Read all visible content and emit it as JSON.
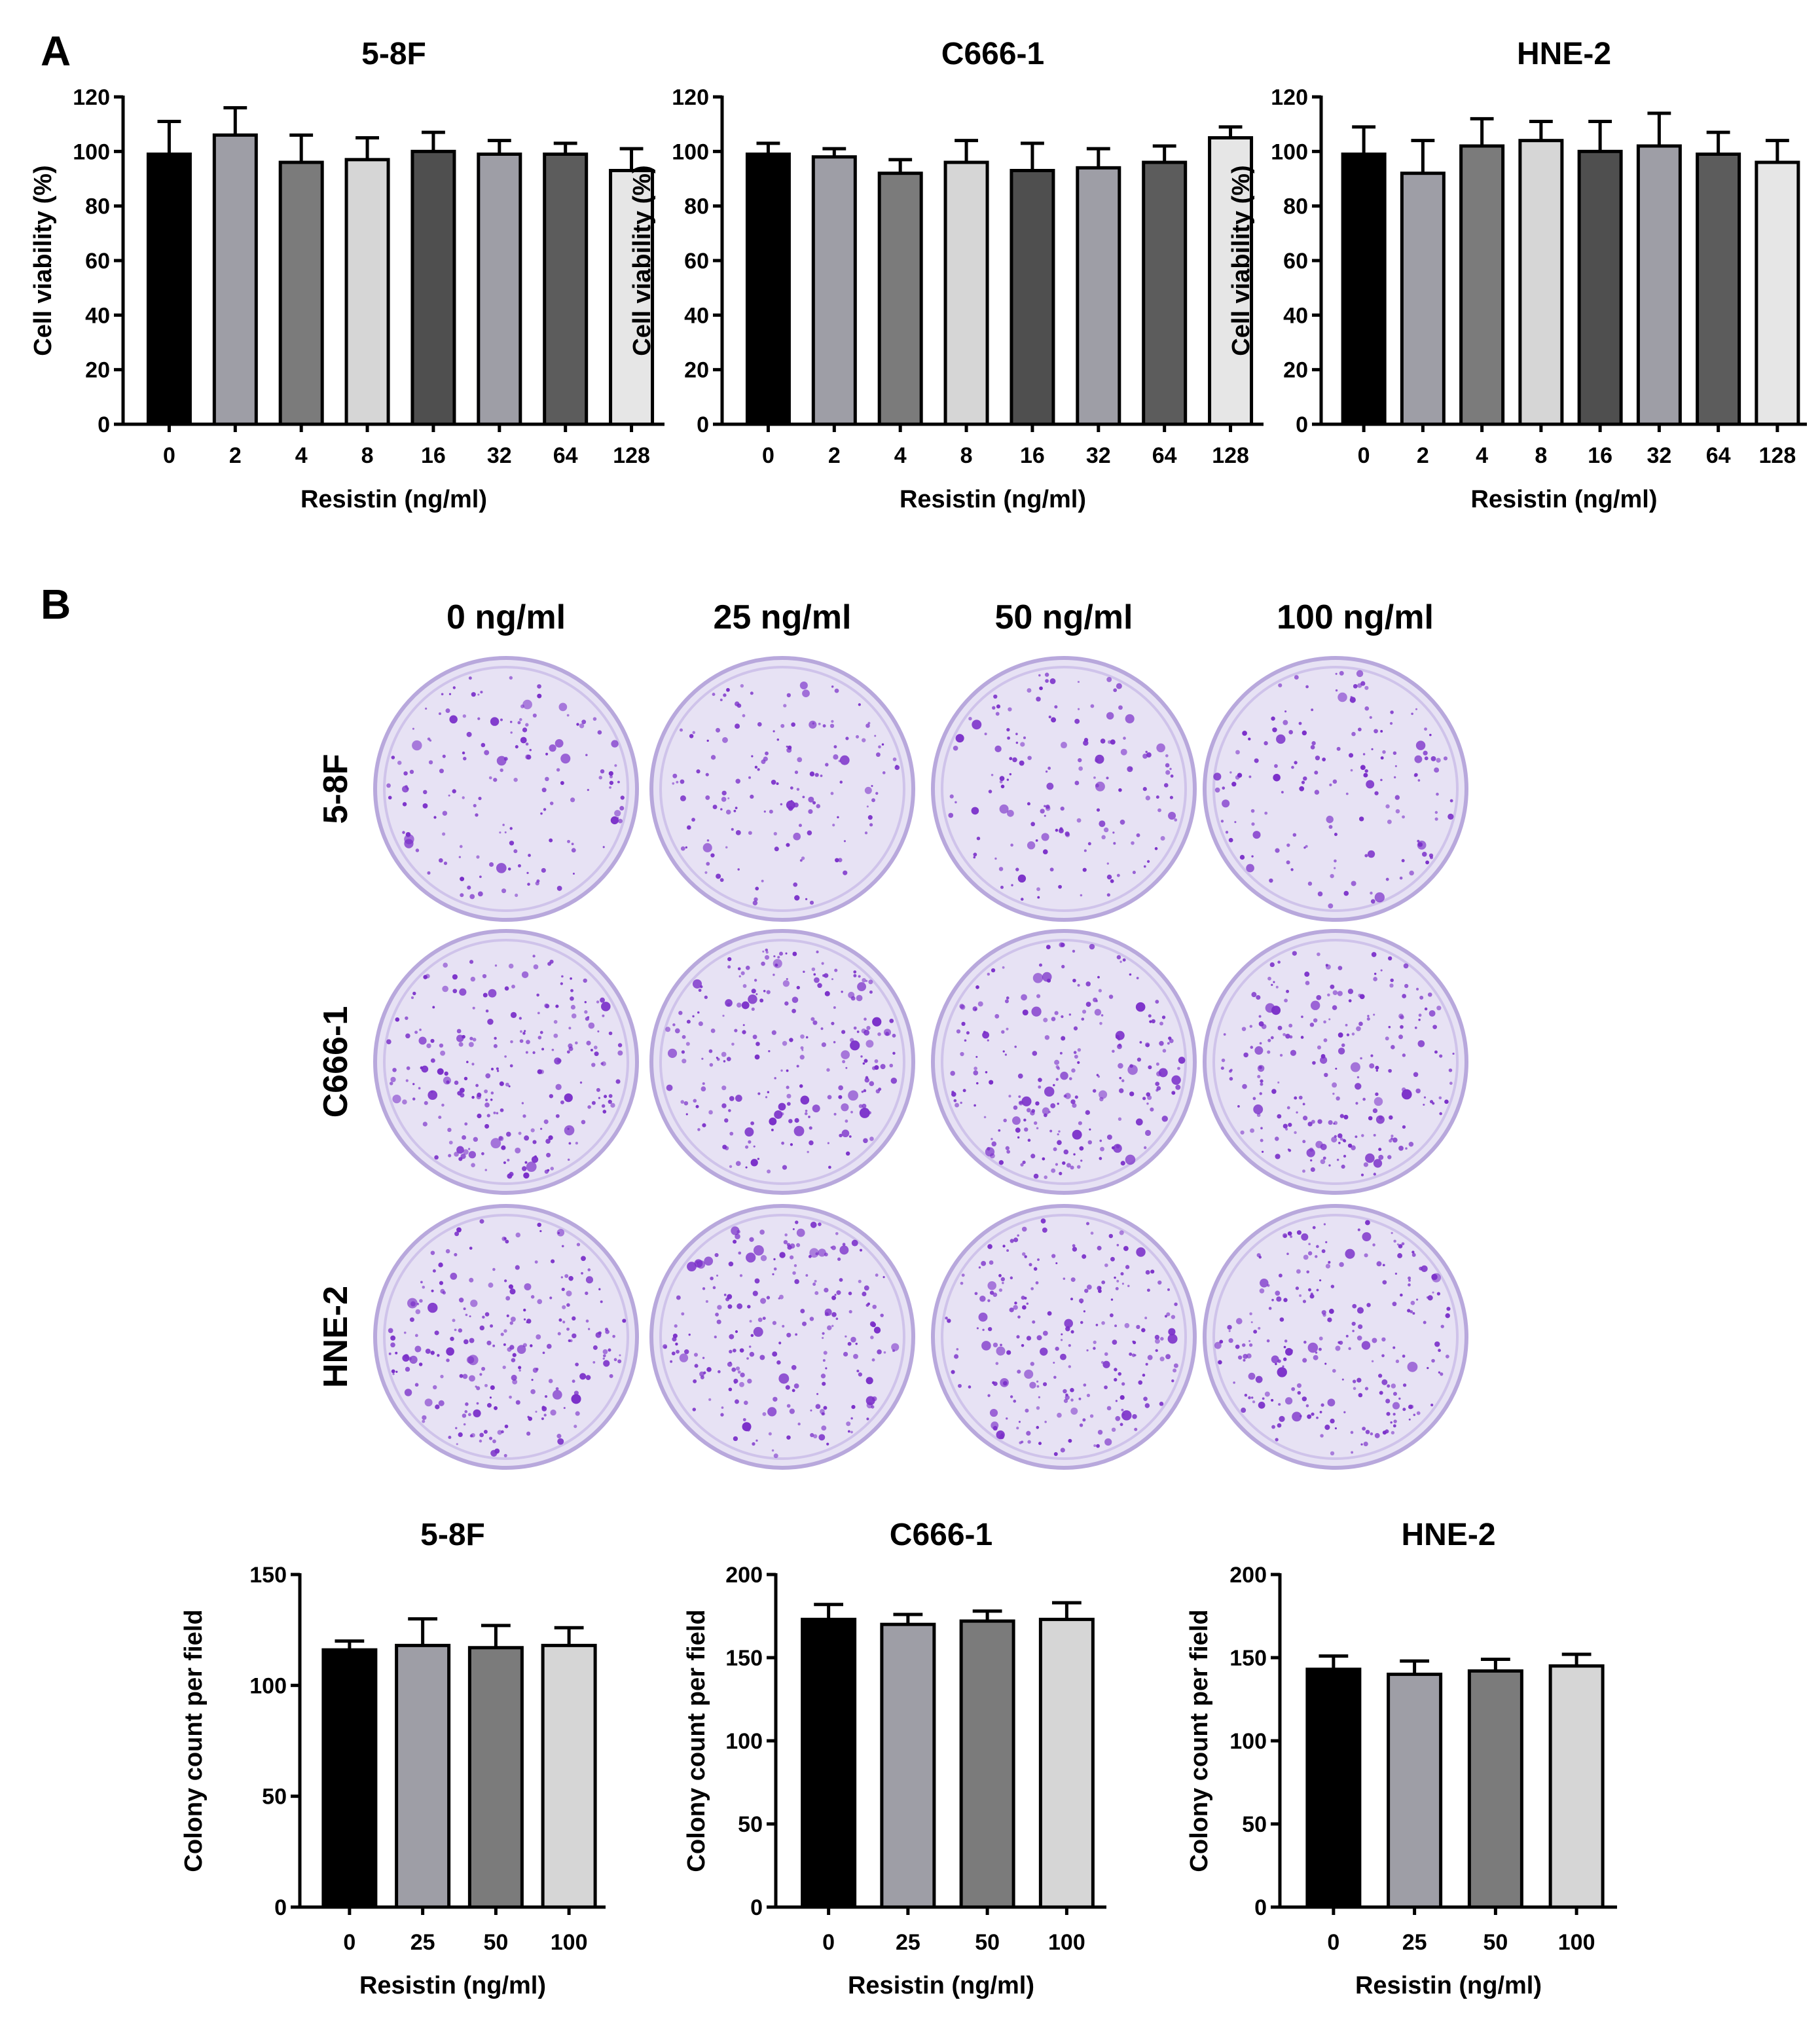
{
  "panels": [
    {
      "letter": "A"
    },
    {
      "letter": "B"
    }
  ],
  "colony_images": {
    "column_labels": [
      "0 ng/ml",
      "25 ng/ml",
      "50 ng/ml",
      "100 ng/ml"
    ],
    "row_labels": [
      "5-8F",
      "C666-1",
      "HNE-2"
    ],
    "dish_fill": "#e7e2f4",
    "colony_color": "#7a2fc9"
  },
  "chart_data": [
    {
      "type": "bar",
      "panel": "A",
      "title": "5-8F",
      "xlabel": "Resistin (ng/ml)",
      "ylabel": "Cell viability (%)",
      "categories": [
        "0",
        "2",
        "4",
        "8",
        "16",
        "32",
        "64",
        "128"
      ],
      "values": [
        99,
        106,
        96,
        97,
        100,
        99,
        99,
        93
      ],
      "errors": [
        12,
        10,
        10,
        8,
        7,
        5,
        4,
        8
      ],
      "ylim": [
        0,
        120
      ],
      "yticks": [
        0,
        20,
        40,
        60,
        80,
        100,
        120
      ],
      "colors": [
        "#000000",
        "#9e9ea6",
        "#7b7b7b",
        "#d6d6d6",
        "#4f4f4f",
        "#9e9ea6",
        "#5c5c5c",
        "#e6e6e6"
      ]
    },
    {
      "type": "bar",
      "panel": "A",
      "title": "C666-1",
      "xlabel": "Resistin (ng/ml)",
      "ylabel": "Cell viability (%)",
      "categories": [
        "0",
        "2",
        "4",
        "8",
        "16",
        "32",
        "64",
        "128"
      ],
      "values": [
        99,
        98,
        92,
        96,
        93,
        94,
        96,
        105
      ],
      "errors": [
        4,
        3,
        5,
        8,
        10,
        7,
        6,
        4
      ],
      "ylim": [
        0,
        120
      ],
      "yticks": [
        0,
        20,
        40,
        60,
        80,
        100,
        120
      ],
      "colors": [
        "#000000",
        "#9e9ea6",
        "#7b7b7b",
        "#d6d6d6",
        "#4f4f4f",
        "#9e9ea6",
        "#5c5c5c",
        "#e6e6e6"
      ]
    },
    {
      "type": "bar",
      "panel": "A",
      "title": "HNE-2",
      "xlabel": "Resistin (ng/ml)",
      "ylabel": "Cell viability (%)",
      "categories": [
        "0",
        "2",
        "4",
        "8",
        "16",
        "32",
        "64",
        "128"
      ],
      "values": [
        99,
        92,
        102,
        104,
        100,
        102,
        99,
        96
      ],
      "errors": [
        10,
        12,
        10,
        7,
        11,
        12,
        8,
        8
      ],
      "ylim": [
        0,
        120
      ],
      "yticks": [
        0,
        20,
        40,
        60,
        80,
        100,
        120
      ],
      "colors": [
        "#000000",
        "#9e9ea6",
        "#7b7b7b",
        "#d6d6d6",
        "#4f4f4f",
        "#9e9ea6",
        "#5c5c5c",
        "#e6e6e6"
      ]
    },
    {
      "type": "bar",
      "panel": "B",
      "title": "5-8F",
      "xlabel": "Resistin (ng/ml)",
      "ylabel": "Colony count per field",
      "categories": [
        "0",
        "25",
        "50",
        "100"
      ],
      "values": [
        116,
        118,
        117,
        118
      ],
      "errors": [
        4,
        12,
        10,
        8
      ],
      "ylim": [
        0,
        150
      ],
      "yticks": [
        0,
        50,
        100,
        150
      ],
      "colors": [
        "#000000",
        "#9e9ea6",
        "#7b7b7b",
        "#d6d6d6"
      ]
    },
    {
      "type": "bar",
      "panel": "B",
      "title": "C666-1",
      "xlabel": "Resistin (ng/ml)",
      "ylabel": "Colony count per field",
      "categories": [
        "0",
        "25",
        "50",
        "100"
      ],
      "values": [
        173,
        170,
        172,
        173
      ],
      "errors": [
        9,
        6,
        6,
        10
      ],
      "ylim": [
        0,
        200
      ],
      "yticks": [
        0,
        50,
        100,
        150,
        200
      ],
      "colors": [
        "#000000",
        "#9e9ea6",
        "#7b7b7b",
        "#d6d6d6"
      ]
    },
    {
      "type": "bar",
      "panel": "B",
      "title": "HNE-2",
      "xlabel": "Resistin (ng/ml)",
      "ylabel": "Colony count per field",
      "categories": [
        "0",
        "25",
        "50",
        "100"
      ],
      "values": [
        143,
        140,
        142,
        145
      ],
      "errors": [
        8,
        8,
        7,
        7
      ],
      "ylim": [
        0,
        200
      ],
      "yticks": [
        0,
        50,
        100,
        150,
        200
      ],
      "colors": [
        "#000000",
        "#9e9ea6",
        "#7b7b7b",
        "#d6d6d6"
      ]
    }
  ]
}
